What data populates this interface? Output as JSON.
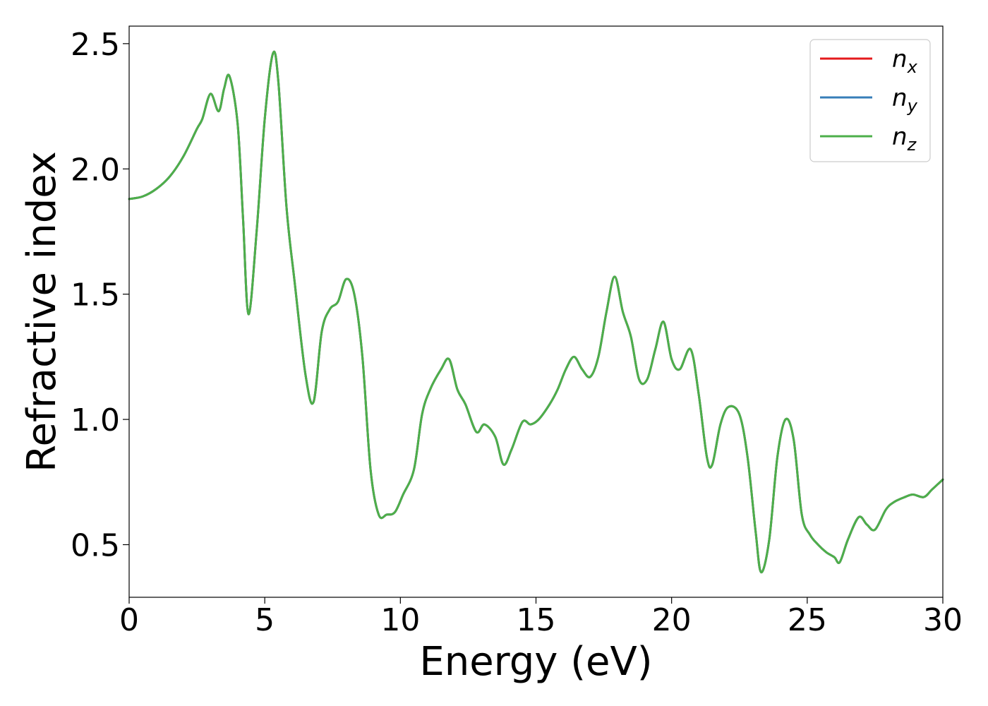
{
  "chart_data": {
    "type": "line",
    "xlabel": "Energy (eV)",
    "ylabel": "Refractive index",
    "xlim": [
      0,
      30
    ],
    "ylim": [
      0.29,
      2.57
    ],
    "xticks": [
      0,
      5,
      10,
      15,
      20,
      25,
      30
    ],
    "yticks": [
      0.5,
      1.0,
      1.5,
      2.0,
      2.5
    ],
    "xtick_labels": [
      "0",
      "5",
      "10",
      "15",
      "20",
      "25",
      "30"
    ],
    "ytick_labels": [
      "0.5",
      "1.0",
      "1.5",
      "2.0",
      "2.5"
    ],
    "grid": false,
    "legend_position": "top-right",
    "x": [
      0,
      0.5,
      1.0,
      1.5,
      2.0,
      2.5,
      2.7,
      3.0,
      3.3,
      3.5,
      3.7,
      4.0,
      4.2,
      4.4,
      4.7,
      5.0,
      5.3,
      5.5,
      5.8,
      6.1,
      6.5,
      6.8,
      7.1,
      7.4,
      7.7,
      8.0,
      8.3,
      8.6,
      8.9,
      9.2,
      9.5,
      9.8,
      10.1,
      10.5,
      10.8,
      11.1,
      11.5,
      11.8,
      12.1,
      12.4,
      12.8,
      13.1,
      13.5,
      13.8,
      14.1,
      14.5,
      14.8,
      15.1,
      15.5,
      15.8,
      16.1,
      16.4,
      16.7,
      17.0,
      17.3,
      17.6,
      17.9,
      18.2,
      18.5,
      18.8,
      19.1,
      19.4,
      19.7,
      20.0,
      20.3,
      20.7,
      21.0,
      21.3,
      21.5,
      21.8,
      22.1,
      22.5,
      22.8,
      23.1,
      23.3,
      23.6,
      23.9,
      24.2,
      24.5,
      24.8,
      25.1,
      25.4,
      25.7,
      26.0,
      26.2,
      26.5,
      26.9,
      27.2,
      27.5,
      27.9,
      28.2,
      28.6,
      28.9,
      29.3,
      29.6,
      30.0
    ],
    "series": [
      {
        "name": "n_x",
        "color": "#e41a1c",
        "y": [
          1.88,
          1.89,
          1.92,
          1.97,
          2.05,
          2.16,
          2.2,
          2.3,
          2.23,
          2.32,
          2.37,
          2.18,
          1.8,
          1.42,
          1.75,
          2.2,
          2.46,
          2.35,
          1.85,
          1.55,
          1.18,
          1.07,
          1.35,
          1.44,
          1.47,
          1.56,
          1.5,
          1.25,
          0.8,
          0.62,
          0.62,
          0.63,
          0.7,
          0.8,
          1.02,
          1.12,
          1.2,
          1.24,
          1.12,
          1.06,
          0.95,
          0.98,
          0.93,
          0.82,
          0.88,
          0.99,
          0.98,
          1.0,
          1.06,
          1.12,
          1.2,
          1.25,
          1.2,
          1.17,
          1.25,
          1.43,
          1.57,
          1.43,
          1.33,
          1.16,
          1.16,
          1.28,
          1.39,
          1.24,
          1.2,
          1.28,
          1.1,
          0.85,
          0.82,
          0.98,
          1.05,
          1.02,
          0.85,
          0.55,
          0.39,
          0.52,
          0.85,
          1.0,
          0.92,
          0.62,
          0.54,
          0.5,
          0.47,
          0.45,
          0.43,
          0.52,
          0.61,
          0.58,
          0.56,
          0.64,
          0.67,
          0.69,
          0.7,
          0.69,
          0.72,
          0.76
        ]
      },
      {
        "name": "n_y",
        "color": "#377eb8",
        "y": [
          1.88,
          1.89,
          1.92,
          1.97,
          2.05,
          2.16,
          2.2,
          2.3,
          2.23,
          2.32,
          2.37,
          2.18,
          1.8,
          1.42,
          1.75,
          2.2,
          2.46,
          2.35,
          1.85,
          1.55,
          1.18,
          1.07,
          1.35,
          1.44,
          1.47,
          1.56,
          1.5,
          1.25,
          0.8,
          0.62,
          0.62,
          0.63,
          0.7,
          0.8,
          1.02,
          1.12,
          1.2,
          1.24,
          1.12,
          1.06,
          0.95,
          0.98,
          0.93,
          0.82,
          0.88,
          0.99,
          0.98,
          1.0,
          1.06,
          1.12,
          1.2,
          1.25,
          1.2,
          1.17,
          1.25,
          1.43,
          1.57,
          1.43,
          1.33,
          1.16,
          1.16,
          1.28,
          1.39,
          1.24,
          1.2,
          1.28,
          1.1,
          0.85,
          0.82,
          0.98,
          1.05,
          1.02,
          0.85,
          0.55,
          0.39,
          0.52,
          0.85,
          1.0,
          0.92,
          0.62,
          0.54,
          0.5,
          0.47,
          0.45,
          0.43,
          0.52,
          0.61,
          0.58,
          0.56,
          0.64,
          0.67,
          0.69,
          0.7,
          0.69,
          0.72,
          0.76
        ]
      },
      {
        "name": "n_z",
        "color": "#4daf4a",
        "y": [
          1.88,
          1.89,
          1.92,
          1.97,
          2.05,
          2.16,
          2.2,
          2.3,
          2.23,
          2.32,
          2.37,
          2.18,
          1.8,
          1.42,
          1.75,
          2.2,
          2.46,
          2.35,
          1.85,
          1.55,
          1.18,
          1.07,
          1.35,
          1.44,
          1.47,
          1.56,
          1.5,
          1.25,
          0.8,
          0.62,
          0.62,
          0.63,
          0.7,
          0.8,
          1.02,
          1.12,
          1.2,
          1.24,
          1.12,
          1.06,
          0.95,
          0.98,
          0.93,
          0.82,
          0.88,
          0.99,
          0.98,
          1.0,
          1.06,
          1.12,
          1.2,
          1.25,
          1.2,
          1.17,
          1.25,
          1.43,
          1.57,
          1.43,
          1.33,
          1.16,
          1.16,
          1.28,
          1.39,
          1.24,
          1.2,
          1.28,
          1.1,
          0.85,
          0.82,
          0.98,
          1.05,
          1.02,
          0.85,
          0.55,
          0.39,
          0.52,
          0.85,
          1.0,
          0.92,
          0.62,
          0.54,
          0.5,
          0.47,
          0.45,
          0.43,
          0.52,
          0.61,
          0.58,
          0.56,
          0.64,
          0.67,
          0.69,
          0.7,
          0.69,
          0.72,
          0.76
        ]
      }
    ],
    "legend": [
      {
        "symbol": "n",
        "sub": "x",
        "color": "#e41a1c"
      },
      {
        "symbol": "n",
        "sub": "y",
        "color": "#377eb8"
      },
      {
        "symbol": "n",
        "sub": "z",
        "color": "#4daf4a"
      }
    ]
  }
}
